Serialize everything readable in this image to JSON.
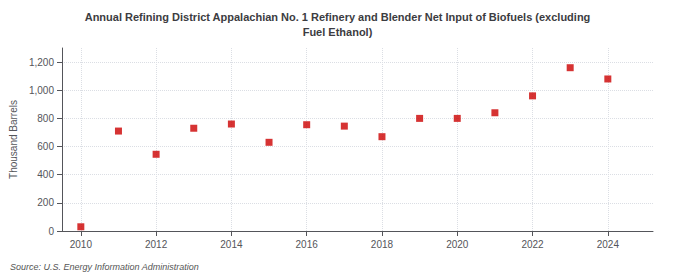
{
  "chart_data": {
    "type": "scatter",
    "title": "Annual Refining District Appalachian No. 1 Refinery and Blender Net Input of Biofuels (excluding\nFuel Ethanol)",
    "ylabel": "Thousand Barrels",
    "source": "Source: U.S. Energy Information Administration",
    "x": [
      2010,
      2011,
      2012,
      2013,
      2014,
      2015,
      2016,
      2017,
      2018,
      2019,
      2020,
      2021,
      2022,
      2023,
      2024
    ],
    "values": [
      30,
      710,
      545,
      730,
      760,
      630,
      755,
      745,
      670,
      800,
      800,
      840,
      960,
      1160,
      1080
    ],
    "color": "#cc0000",
    "marker": "square",
    "xlim": [
      2009.5,
      2025.2
    ],
    "xticks": [
      2010,
      2012,
      2014,
      2016,
      2018,
      2020,
      2022,
      2024
    ],
    "ylim": [
      0,
      1300
    ],
    "yticks": [
      0,
      200,
      400,
      600,
      800,
      {
        "value": 1000,
        "label": "1,000"
      },
      {
        "value": 1200,
        "label": "1,200"
      }
    ],
    "grid": true
  }
}
